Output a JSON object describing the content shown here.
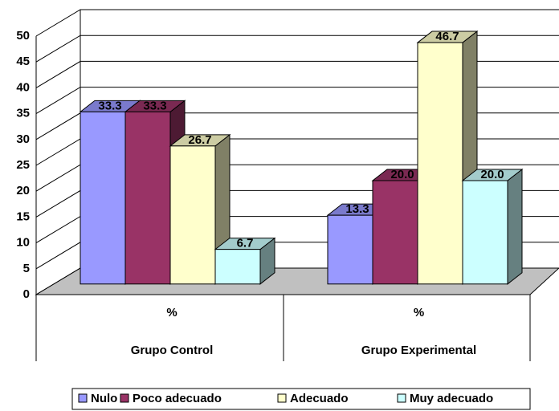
{
  "chart_data": {
    "type": "bar3d",
    "categories": [
      "%",
      "%"
    ],
    "groups": [
      "Grupo Control",
      "Grupo Experimental"
    ],
    "series": [
      {
        "name": "Nulo",
        "color": "#9999ff",
        "values": [
          33.3,
          13.3
        ]
      },
      {
        "name": "Poco adecuado",
        "color": "#993366",
        "values": [
          33.3,
          20.0
        ],
        "value_labels": [
          "33.3",
          "20.0"
        ]
      },
      {
        "name": "Adecuado",
        "color": "#ffffcc",
        "values": [
          26.7,
          46.7
        ]
      },
      {
        "name": "Muy adecuado",
        "color": "#ccffff",
        "values": [
          6.7,
          20.0
        ],
        "value_labels": [
          "6.7",
          "20.0"
        ]
      }
    ],
    "ylim": [
      0,
      50
    ],
    "yticks": [
      0,
      5,
      10,
      15,
      20,
      25,
      30,
      35,
      40,
      45,
      50
    ],
    "grid": true,
    "legend": "bottom"
  }
}
